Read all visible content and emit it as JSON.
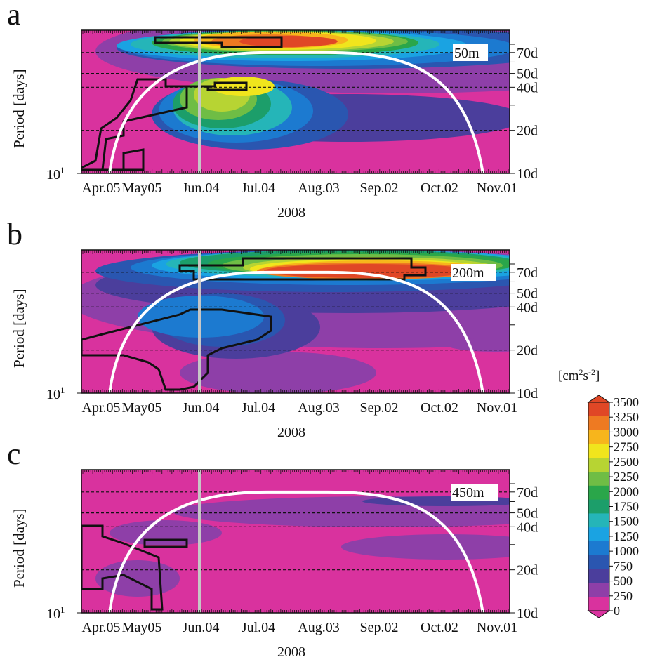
{
  "figure": {
    "colorbar": {
      "unit_prefix": "[cm",
      "unit_sup1": "2",
      "unit_mid": "s",
      "unit_sup2": "-2",
      "unit_suffix": "]",
      "levels": [
        0,
        250,
        500,
        750,
        1000,
        1250,
        1500,
        1750,
        2000,
        2250,
        2500,
        2750,
        3000,
        3250,
        3500
      ],
      "labels": [
        "3500",
        "3250",
        "3000",
        "2750",
        "2500",
        "2250",
        "2000",
        "1750",
        "1500",
        "1250",
        "1000",
        "750",
        "500",
        "250",
        "0"
      ],
      "colors": [
        "#d9329e",
        "#8e3fa8",
        "#4b3e9c",
        "#2a56b0",
        "#1c7ad0",
        "#1aa3e2",
        "#25b5b8",
        "#1c9e6a",
        "#2aa64a",
        "#6fbd45",
        "#b7d433",
        "#f0e51d",
        "#f7b51c",
        "#ee7a22",
        "#e04726"
      ]
    }
  },
  "chart_data": [
    {
      "type": "heatmap",
      "panel_label": "a",
      "depth_label": "50m",
      "ylabel": "Period [days]",
      "xlabel": "2008",
      "x_ticks": [
        "Apr.05",
        "May05",
        "Jun.04",
        "Jul.04",
        "Aug.03",
        "Sep.02",
        "Oct.02",
        "Nov.01"
      ],
      "y_left_ticks": [
        {
          "base": "10",
          "exp": "1"
        }
      ],
      "y_right_ticks": [
        "70d",
        "50d",
        "40d",
        "20d",
        "10d"
      ],
      "y_reference_lines_days": [
        70,
        50,
        40,
        20
      ],
      "marker_date": "Jun.04",
      "blobs": [
        {
          "level": 1,
          "cx": 450,
          "cy": 30,
          "rx": 430,
          "ry": 60
        },
        {
          "level": 2,
          "cx": 380,
          "cy": 125,
          "rx": 250,
          "ry": 34
        },
        {
          "level": 1,
          "cx": 710,
          "cy": 212,
          "rx": 22,
          "ry": 14
        },
        {
          "level": 3,
          "cx": 380,
          "cy": 25,
          "rx": 330,
          "ry": 30
        },
        {
          "level": 4,
          "cx": 340,
          "cy": 25,
          "rx": 280,
          "ry": 26
        },
        {
          "level": 3,
          "cx": 240,
          "cy": 120,
          "rx": 140,
          "ry": 50
        },
        {
          "level": 4,
          "cx": 220,
          "cy": 115,
          "rx": 110,
          "ry": 45
        },
        {
          "level": 5,
          "cx": 300,
          "cy": 22,
          "rx": 250,
          "ry": 22
        },
        {
          "level": 6,
          "cx": 290,
          "cy": 20,
          "rx": 220,
          "ry": 20
        },
        {
          "level": 6,
          "cx": 215,
          "cy": 110,
          "rx": 85,
          "ry": 40
        },
        {
          "level": 7,
          "cx": 200,
          "cy": 105,
          "rx": 70,
          "ry": 35
        },
        {
          "level": 8,
          "cx": 290,
          "cy": 18,
          "rx": 190,
          "ry": 18
        },
        {
          "level": 9,
          "cx": 290,
          "cy": 16,
          "rx": 175,
          "ry": 15
        },
        {
          "level": 9,
          "cx": 195,
          "cy": 98,
          "rx": 55,
          "ry": 30
        },
        {
          "level": 10,
          "cx": 285,
          "cy": 16,
          "rx": 160,
          "ry": 14
        },
        {
          "level": 10,
          "cx": 200,
          "cy": 92,
          "rx": 40,
          "ry": 24
        },
        {
          "level": 11,
          "cx": 280,
          "cy": 15,
          "rx": 140,
          "ry": 13
        },
        {
          "level": 11,
          "cx": 230,
          "cy": 80,
          "rx": 45,
          "ry": 14
        },
        {
          "level": 12,
          "cx": 270,
          "cy": 14,
          "rx": 110,
          "ry": 12
        },
        {
          "level": 13,
          "cx": 265,
          "cy": 16,
          "rx": 80,
          "ry": 10
        },
        {
          "level": 14,
          "cx": 295,
          "cy": 16,
          "rx": 70,
          "ry": 8
        }
      ],
      "sig_contour": [
        [
          0,
          196
        ],
        [
          20,
          186
        ],
        [
          28,
          140
        ],
        [
          50,
          125
        ],
        [
          70,
          100
        ],
        [
          80,
          70
        ],
        [
          120,
          70
        ],
        [
          120,
          80
        ],
        [
          180,
          80
        ],
        [
          180,
          85
        ],
        [
          235,
          85
        ],
        [
          235,
          75
        ],
        [
          190,
          75
        ],
        [
          190,
          80
        ],
        [
          150,
          80
        ],
        [
          150,
          110
        ],
        [
          60,
          130
        ],
        [
          60,
          150
        ],
        [
          35,
          155
        ],
        [
          30,
          199
        ],
        [
          60,
          199
        ],
        [
          60,
          175
        ],
        [
          88,
          170
        ],
        [
          88,
          199
        ],
        [
          0,
          199
        ]
      ],
      "sig_contour_top": [
        [
          105,
          10
        ],
        [
          285,
          10
        ],
        [
          285,
          24
        ],
        [
          200,
          24
        ],
        [
          200,
          18
        ],
        [
          105,
          18
        ]
      ],
      "arc": {
        "start_date": "Apr.05",
        "peak_start_day": 83,
        "peak_end_day": 115,
        "end_day": 197
      }
    },
    {
      "type": "heatmap",
      "panel_label": "b",
      "depth_label": "200m",
      "ylabel": "Period [days]",
      "xlabel": "2008",
      "x_ticks": [
        "Apr.05",
        "May05",
        "Jun.04",
        "Jul.04",
        "Aug.03",
        "Sep.02",
        "Oct.02",
        "Nov.01"
      ],
      "y_left_ticks": [
        {
          "base": "10",
          "exp": "1"
        }
      ],
      "y_right_ticks": [
        "70d",
        "50d",
        "40d",
        "20d",
        "10d"
      ],
      "y_reference_lines_days": [
        70,
        50,
        40,
        20
      ],
      "marker_date": "Jun.04",
      "blobs": [
        {
          "level": 1,
          "cx": 430,
          "cy": 70,
          "rx": 450,
          "ry": 70
        },
        {
          "level": 1,
          "cx": 280,
          "cy": 175,
          "rx": 140,
          "ry": 30
        },
        {
          "level": 1,
          "cx": 590,
          "cy": 135,
          "rx": 70,
          "ry": 10
        },
        {
          "level": 2,
          "cx": 380,
          "cy": 50,
          "rx": 360,
          "ry": 40
        },
        {
          "level": 2,
          "cx": 220,
          "cy": 110,
          "rx": 120,
          "ry": 45
        },
        {
          "level": 3,
          "cx": 360,
          "cy": 30,
          "rx": 340,
          "ry": 30
        },
        {
          "level": 3,
          "cx": 200,
          "cy": 100,
          "rx": 90,
          "ry": 38
        },
        {
          "level": 4,
          "cx": 380,
          "cy": 25,
          "rx": 310,
          "ry": 25
        },
        {
          "level": 4,
          "cx": 170,
          "cy": 95,
          "rx": 90,
          "ry": 30
        },
        {
          "level": 5,
          "cx": 390,
          "cy": 22,
          "rx": 290,
          "ry": 22
        },
        {
          "level": 6,
          "cx": 380,
          "cy": 20,
          "rx": 260,
          "ry": 20
        },
        {
          "level": 7,
          "cx": 380,
          "cy": 18,
          "rx": 240,
          "ry": 18
        },
        {
          "level": 8,
          "cx": 400,
          "cy": 20,
          "rx": 220,
          "ry": 17
        },
        {
          "level": 9,
          "cx": 400,
          "cy": 22,
          "rx": 200,
          "ry": 16
        },
        {
          "level": 10,
          "cx": 410,
          "cy": 25,
          "rx": 180,
          "ry": 15
        },
        {
          "level": 11,
          "cx": 410,
          "cy": 27,
          "rx": 170,
          "ry": 14
        },
        {
          "level": 12,
          "cx": 420,
          "cy": 28,
          "rx": 160,
          "ry": 13
        },
        {
          "level": 13,
          "cx": 410,
          "cy": 30,
          "rx": 160,
          "ry": 12
        },
        {
          "level": 14,
          "cx": 410,
          "cy": 30,
          "rx": 150,
          "ry": 10
        }
      ],
      "sig_contour": [
        [
          0,
          128
        ],
        [
          30,
          120
        ],
        [
          140,
          92
        ],
        [
          155,
          85
        ],
        [
          200,
          85
        ],
        [
          270,
          95
        ],
        [
          270,
          115
        ],
        [
          250,
          128
        ],
        [
          200,
          140
        ],
        [
          180,
          150
        ],
        [
          180,
          175
        ],
        [
          160,
          195
        ],
        [
          140,
          199
        ],
        [
          120,
          199
        ],
        [
          110,
          170
        ],
        [
          95,
          160
        ],
        [
          60,
          150
        ],
        [
          0,
          150
        ]
      ],
      "sig_contour_top": [
        [
          140,
          22
        ],
        [
          230,
          22
        ],
        [
          230,
          12
        ],
        [
          470,
          12
        ],
        [
          470,
          25
        ],
        [
          490,
          25
        ],
        [
          490,
          36
        ],
        [
          460,
          36
        ],
        [
          460,
          42
        ],
        [
          160,
          42
        ],
        [
          160,
          30
        ],
        [
          140,
          30
        ]
      ],
      "arc": {
        "start_date": "Apr.05",
        "peak_start_day": 83,
        "peak_end_day": 115,
        "end_day": 197
      }
    },
    {
      "type": "heatmap",
      "panel_label": "c",
      "depth_label": "450m",
      "ylabel": "Period [days]",
      "xlabel": "2008",
      "x_ticks": [
        "Apr.05",
        "May05",
        "Jun.04",
        "Jul.04",
        "Aug.03",
        "Sep.02",
        "Oct.02",
        "Nov.01"
      ],
      "y_left_ticks": [
        {
          "base": "10",
          "exp": "1"
        }
      ],
      "y_right_ticks": [
        "70d",
        "50d",
        "40d",
        "20d",
        "10d"
      ],
      "y_reference_lines_days": [
        70,
        50,
        40,
        20
      ],
      "marker_date": "Jun.04",
      "blobs": [
        {
          "level": 1,
          "cx": 430,
          "cy": 60,
          "rx": 300,
          "ry": 22
        },
        {
          "level": 1,
          "cx": 120,
          "cy": 90,
          "rx": 80,
          "ry": 18
        },
        {
          "level": 1,
          "cx": 80,
          "cy": 155,
          "rx": 60,
          "ry": 26
        },
        {
          "level": 1,
          "cx": 520,
          "cy": 110,
          "rx": 150,
          "ry": 18
        },
        {
          "level": 2,
          "cx": 520,
          "cy": 45,
          "rx": 120,
          "ry": 7
        }
      ],
      "sig_contour": [
        [
          90,
          100
        ],
        [
          150,
          100
        ],
        [
          150,
          110
        ],
        [
          90,
          110
        ]
      ],
      "sig_contour_top": [
        [
          0,
          80
        ],
        [
          30,
          80
        ],
        [
          30,
          95
        ],
        [
          60,
          105
        ],
        [
          110,
          125
        ],
        [
          115,
          199
        ],
        [
          100,
          199
        ],
        [
          100,
          170
        ],
        [
          60,
          150
        ],
        [
          30,
          155
        ],
        [
          30,
          170
        ],
        [
          0,
          170
        ]
      ],
      "arc": {
        "start_date": "Apr.05",
        "peak_start_day": 83,
        "peak_end_day": 115,
        "end_day": 197
      }
    }
  ]
}
